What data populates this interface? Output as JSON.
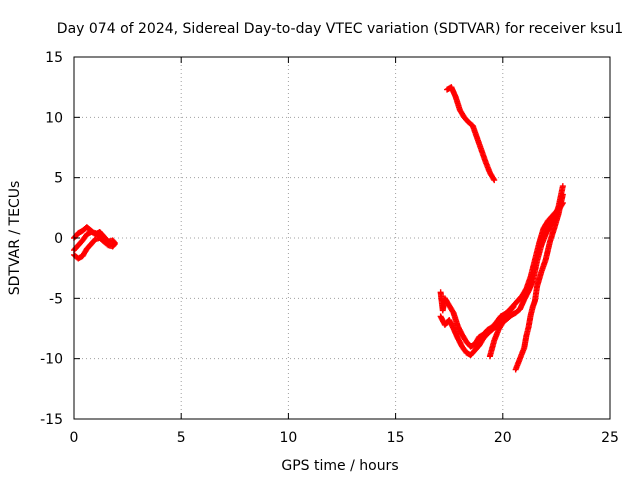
{
  "chart_data": {
    "type": "scatter",
    "title": "Day 074 of 2024, Sidereal Day-to-day VTEC variation (SDTVAR) for receiver ksu1",
    "xlabel": "GPS time / hours",
    "ylabel": "SDTVAR / TECUs",
    "xlim": [
      0,
      25
    ],
    "ylim": [
      -15,
      15
    ],
    "xticks": [
      0,
      5,
      10,
      15,
      20,
      25
    ],
    "yticks": [
      -15,
      -10,
      -5,
      0,
      5,
      10,
      15
    ],
    "grid": true,
    "marker": "+",
    "series": [
      {
        "color": "#ff0000",
        "segments": [
          [
            [
              0.0,
              0.0
            ],
            [
              0.2,
              0.4
            ],
            [
              0.4,
              0.6
            ],
            [
              0.6,
              0.9
            ],
            [
              0.8,
              0.6
            ],
            [
              1.0,
              0.3
            ],
            [
              1.2,
              0.5
            ],
            [
              1.4,
              0.1
            ],
            [
              1.6,
              -0.3
            ],
            [
              1.8,
              -0.2
            ],
            [
              1.9,
              -0.4
            ]
          ],
          [
            [
              0.0,
              -1.4
            ],
            [
              0.2,
              -1.7
            ],
            [
              0.4,
              -1.5
            ],
            [
              0.6,
              -0.9
            ],
            [
              0.8,
              -0.5
            ],
            [
              1.0,
              -0.1
            ],
            [
              1.2,
              0.0
            ],
            [
              1.4,
              -0.3
            ],
            [
              1.6,
              -0.6
            ],
            [
              1.8,
              -0.7
            ],
            [
              1.9,
              -0.5
            ]
          ],
          [
            [
              0.0,
              -1.0
            ],
            [
              0.2,
              -0.6
            ],
            [
              0.4,
              -0.2
            ],
            [
              0.6,
              0.3
            ],
            [
              0.8,
              0.5
            ],
            [
              1.0,
              0.4
            ],
            [
              1.2,
              0.2
            ]
          ],
          [
            [
              17.4,
              12.3
            ],
            [
              17.6,
              12.5
            ],
            [
              17.8,
              11.7
            ],
            [
              18.0,
              10.6
            ],
            [
              18.2,
              10.0
            ],
            [
              18.4,
              9.6
            ],
            [
              18.6,
              9.3
            ],
            [
              18.8,
              8.3
            ],
            [
              19.0,
              7.3
            ],
            [
              19.2,
              6.3
            ],
            [
              19.4,
              5.4
            ],
            [
              19.6,
              4.8
            ]
          ],
          [
            [
              17.1,
              -4.5
            ],
            [
              17.2,
              -6.0
            ],
            [
              17.3,
              -5.0
            ],
            [
              17.5,
              -5.6
            ],
            [
              17.7,
              -6.2
            ],
            [
              17.9,
              -7.3
            ],
            [
              18.1,
              -8.0
            ],
            [
              18.3,
              -8.6
            ],
            [
              18.5,
              -9.0
            ],
            [
              18.7,
              -8.8
            ],
            [
              18.9,
              -8.2
            ],
            [
              19.1,
              -8.0
            ],
            [
              19.3,
              -7.6
            ],
            [
              19.5,
              -7.4
            ],
            [
              19.7,
              -7.0
            ],
            [
              19.9,
              -6.5
            ],
            [
              20.1,
              -6.3
            ],
            [
              20.3,
              -6.0
            ],
            [
              20.5,
              -5.6
            ],
            [
              20.7,
              -5.2
            ],
            [
              20.9,
              -4.8
            ],
            [
              21.1,
              -4.2
            ],
            [
              21.3,
              -3.2
            ],
            [
              21.5,
              -1.8
            ],
            [
              21.7,
              -0.4
            ],
            [
              21.9,
              0.8
            ],
            [
              22.1,
              1.4
            ],
            [
              22.3,
              1.8
            ],
            [
              22.5,
              2.2
            ],
            [
              22.7,
              2.6
            ],
            [
              22.8,
              2.9
            ]
          ],
          [
            [
              17.1,
              -6.5
            ],
            [
              17.3,
              -7.2
            ],
            [
              17.5,
              -6.8
            ],
            [
              17.7,
              -7.5
            ],
            [
              17.9,
              -8.3
            ],
            [
              18.1,
              -9.0
            ],
            [
              18.3,
              -9.5
            ],
            [
              18.5,
              -9.7
            ],
            [
              18.7,
              -9.3
            ],
            [
              18.9,
              -8.9
            ],
            [
              19.1,
              -8.3
            ],
            [
              19.3,
              -7.9
            ],
            [
              19.5,
              -7.6
            ],
            [
              19.7,
              -7.3
            ],
            [
              19.9,
              -6.9
            ],
            [
              20.1,
              -6.5
            ],
            [
              20.3,
              -6.1
            ],
            [
              20.5,
              -5.7
            ]
          ],
          [
            [
              19.4,
              -9.8
            ],
            [
              19.6,
              -8.5
            ],
            [
              19.8,
              -7.6
            ],
            [
              20.0,
              -7.0
            ],
            [
              20.2,
              -6.7
            ],
            [
              20.4,
              -6.4
            ],
            [
              20.6,
              -6.2
            ],
            [
              20.8,
              -5.9
            ],
            [
              21.0,
              -5.1
            ],
            [
              21.2,
              -4.4
            ],
            [
              21.4,
              -3.6
            ],
            [
              21.6,
              -1.9
            ],
            [
              21.8,
              -0.6
            ],
            [
              22.0,
              0.3
            ],
            [
              22.2,
              1.0
            ],
            [
              22.4,
              1.6
            ],
            [
              22.6,
              2.6
            ],
            [
              22.8,
              4.3
            ]
          ],
          [
            [
              20.6,
              -10.9
            ],
            [
              20.8,
              -10.0
            ],
            [
              21.0,
              -9.1
            ],
            [
              21.1,
              -8.1
            ],
            [
              21.2,
              -7.4
            ],
            [
              21.3,
              -6.4
            ],
            [
              21.4,
              -5.7
            ],
            [
              21.5,
              -5.2
            ],
            [
              21.6,
              -4.0
            ],
            [
              21.8,
              -2.8
            ],
            [
              22.0,
              -1.8
            ],
            [
              22.2,
              -0.3
            ],
            [
              22.4,
              0.8
            ],
            [
              22.6,
              2.0
            ],
            [
              22.8,
              3.6
            ]
          ]
        ]
      }
    ]
  }
}
